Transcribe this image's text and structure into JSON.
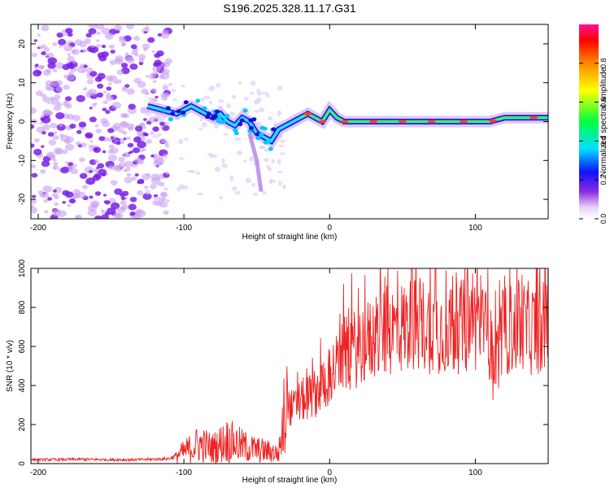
{
  "title": "S196.2025.328.11.17.G31",
  "chart_data": [
    {
      "type": "heatmap",
      "name": "spectrogram",
      "xlabel": "Height of straight line (km)",
      "ylabel": "Frequency (Hz)",
      "xlim": [
        -205,
        150
      ],
      "ylim": [
        -25,
        25
      ],
      "xticks": [
        -200,
        -100,
        0,
        100
      ],
      "yticks": [
        -20,
        -10,
        0,
        10,
        20
      ],
      "ridge": {
        "x": [
          -125,
          -115,
          -105,
          -100,
          -95,
          -90,
          -85,
          -80,
          -75,
          -70,
          -65,
          -60,
          -55,
          -50,
          -45,
          -40,
          -35,
          -30,
          -25,
          -20,
          -15,
          -10,
          -5,
          0,
          5,
          10,
          15,
          20,
          40,
          60,
          80,
          100,
          110,
          120,
          150
        ],
        "y": [
          4,
          3,
          2,
          3,
          4,
          3,
          2,
          1,
          2,
          0,
          -1,
          1,
          0,
          -3,
          -4,
          -5,
          -2,
          -1,
          0,
          1,
          2,
          1,
          0,
          3,
          1,
          0,
          0,
          0,
          0,
          0,
          0,
          0,
          0,
          1,
          1
        ]
      },
      "colorbar": {
        "label": "Normalized spectral amplitude",
        "range": [
          0,
          1
        ],
        "ticks": [
          "0.0",
          "0.2",
          "0.4",
          "0.6",
          "0.8"
        ]
      }
    },
    {
      "type": "line",
      "name": "snr",
      "xlabel": "Height of straight line (km)",
      "ylabel": "SNR (10 * v/v)",
      "xlim": [
        -205,
        150
      ],
      "ylim": [
        0,
        1000
      ],
      "xticks": [
        -200,
        -100,
        0,
        100
      ],
      "yticks": [
        0,
        200,
        400,
        600,
        800,
        1000
      ],
      "series": [
        {
          "name": "SNR",
          "color": "#ee2222",
          "x": [
            -205,
            -190,
            -170,
            -150,
            -130,
            -110,
            -100,
            -90,
            -80,
            -70,
            -60,
            -50,
            -40,
            -35,
            -30,
            -25,
            -20,
            -10,
            0,
            10,
            20,
            30,
            40,
            50,
            60,
            70,
            80,
            90,
            100,
            110,
            112,
            120,
            130,
            140,
            150
          ],
          "values": [
            20,
            20,
            22,
            20,
            20,
            25,
            60,
            100,
            80,
            120,
            90,
            70,
            60,
            50,
            300,
            280,
            320,
            360,
            450,
            550,
            600,
            640,
            680,
            700,
            720,
            700,
            690,
            700,
            720,
            650,
            480,
            680,
            700,
            690,
            700
          ]
        }
      ]
    }
  ]
}
